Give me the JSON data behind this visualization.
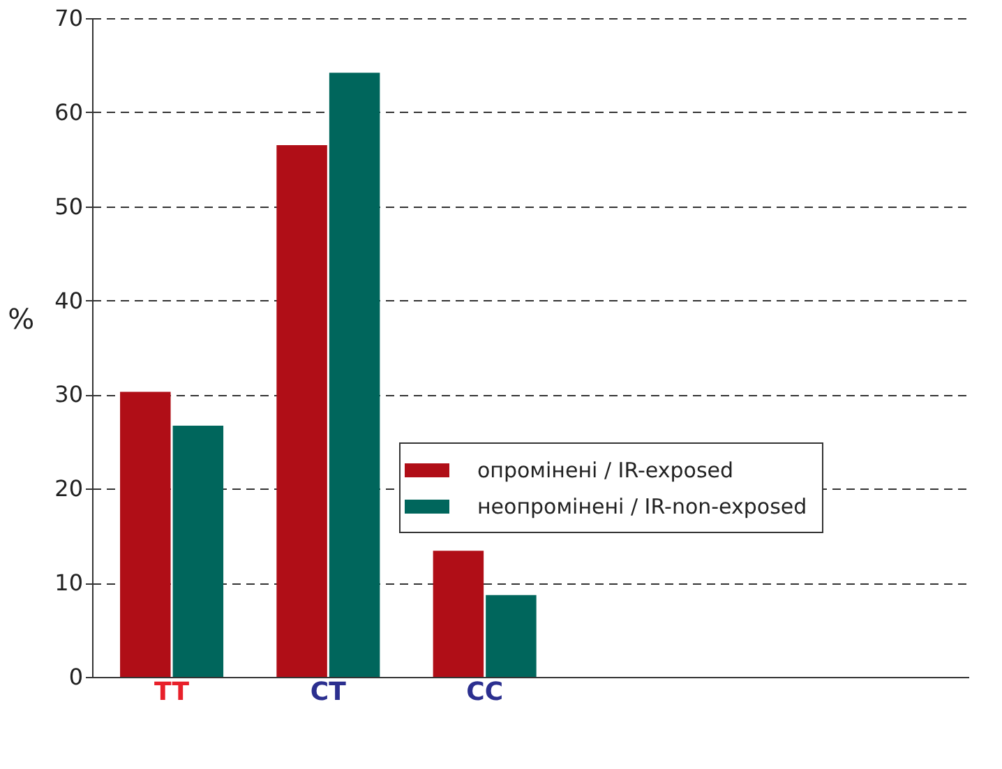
{
  "chart_data": {
    "type": "bar",
    "ylabel": "%",
    "categories": [
      "TT",
      "CT",
      "CC"
    ],
    "series": [
      {
        "name": "опромінені / IR-exposed",
        "color": "#b00e17",
        "values": [
          30.3,
          56.5,
          13.4
        ]
      },
      {
        "name": "неопромінені / IR-non-exposed",
        "color": "#00665c",
        "values": [
          26.7,
          64.2,
          8.7
        ]
      }
    ],
    "ylim": [
      0,
      70
    ],
    "yticks": [
      0,
      10,
      20,
      30,
      40,
      50,
      60,
      70
    ],
    "grid": "y",
    "legend": "right"
  }
}
